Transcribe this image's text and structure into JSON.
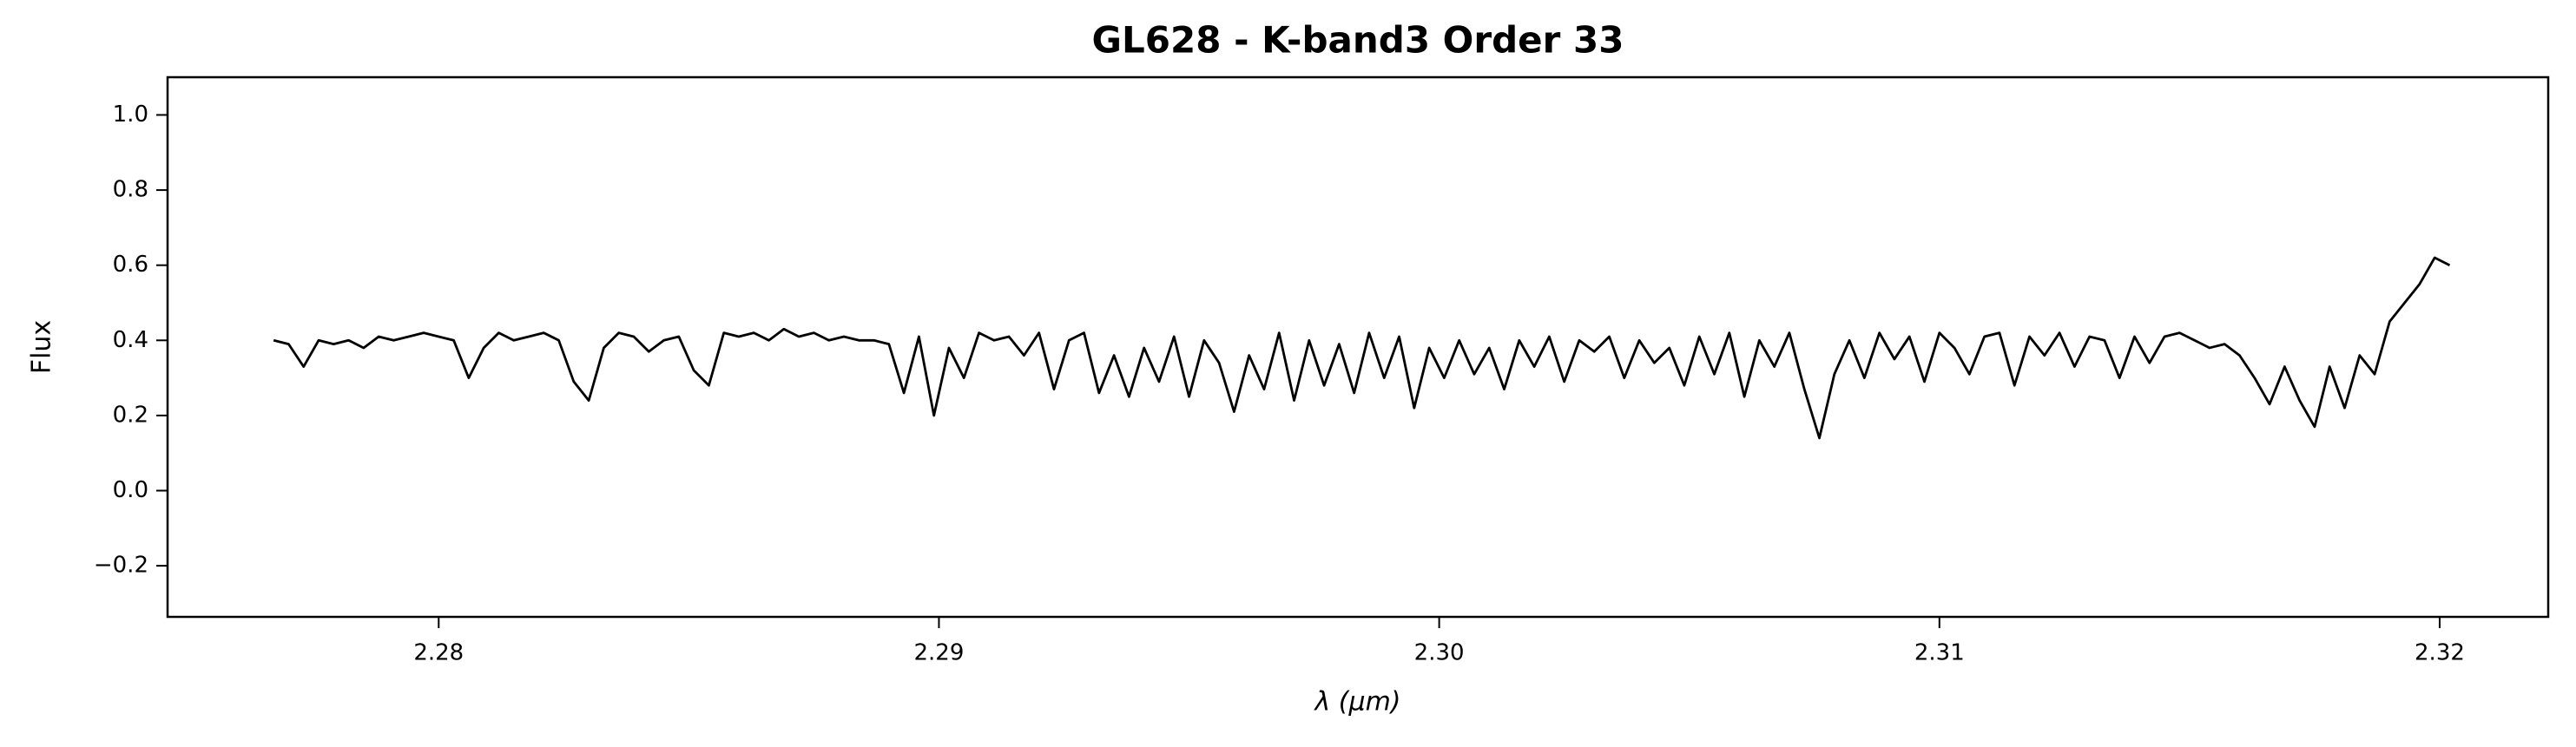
{
  "chart_data": {
    "type": "line",
    "title": "GL628 - K-band3 Order 33",
    "x_label": "λ (μm)",
    "y_label": "Flux",
    "x": [
      2.2767,
      2.277,
      2.2773,
      2.2776,
      2.2779,
      2.2782,
      2.2785,
      2.2788,
      2.2791,
      2.2794,
      2.2797,
      2.28,
      2.2803,
      2.2806,
      2.2809,
      2.2812,
      2.2815,
      2.2818,
      2.2821,
      2.2824,
      2.2827,
      2.283,
      2.2833,
      2.2836,
      2.2839,
      2.2842,
      2.2845,
      2.2848,
      2.2851,
      2.2854,
      2.2857,
      2.286,
      2.2863,
      2.2866,
      2.2869,
      2.2872,
      2.2875,
      2.2878,
      2.2881,
      2.2884,
      2.2887,
      2.289,
      2.2893,
      2.2896,
      2.2899,
      2.2902,
      2.2905,
      2.2908,
      2.2911,
      2.2914,
      2.2917,
      2.292,
      2.2923,
      2.2926,
      2.2929,
      2.2932,
      2.2935,
      2.2938,
      2.2941,
      2.2944,
      2.2947,
      2.295,
      2.2953,
      2.2956,
      2.2959,
      2.2962,
      2.2965,
      2.2968,
      2.2971,
      2.2974,
      2.2977,
      2.298,
      2.2983,
      2.2986,
      2.2989,
      2.2992,
      2.2995,
      2.2998,
      2.3001,
      2.3004,
      2.3007,
      2.301,
      2.3013,
      2.3016,
      2.3019,
      2.3022,
      2.3025,
      2.3028,
      2.3031,
      2.3034,
      2.3037,
      2.304,
      2.3043,
      2.3046,
      2.3049,
      2.3052,
      2.3055,
      2.3058,
      2.3061,
      2.3064,
      2.3067,
      2.307,
      2.3073,
      2.3076,
      2.3079,
      2.3082,
      2.3085,
      2.3088,
      2.3091,
      2.3094,
      2.3097,
      2.31,
      2.3103,
      2.3106,
      2.3109,
      2.3112,
      2.3115,
      2.3118,
      2.3121,
      2.3124,
      2.3127,
      2.313,
      2.3133,
      2.3136,
      2.3139,
      2.3142,
      2.3145,
      2.3148,
      2.3151,
      2.3154,
      2.3157,
      2.316,
      2.3163,
      2.3166,
      2.3169,
      2.3172,
      2.3175,
      2.3178,
      2.3181,
      2.3184,
      2.3187,
      2.319,
      2.3193,
      2.3196,
      2.3199,
      2.3202
    ],
    "values": [
      0.4,
      0.39,
      0.33,
      0.4,
      0.39,
      0.4,
      0.38,
      0.41,
      0.4,
      0.41,
      0.42,
      0.41,
      0.4,
      0.3,
      0.38,
      0.42,
      0.4,
      0.41,
      0.42,
      0.4,
      0.29,
      0.24,
      0.38,
      0.42,
      0.41,
      0.37,
      0.4,
      0.41,
      0.32,
      0.28,
      0.42,
      0.41,
      0.42,
      0.4,
      0.43,
      0.41,
      0.42,
      0.4,
      0.41,
      0.4,
      0.4,
      0.39,
      0.26,
      0.41,
      0.2,
      0.38,
      0.3,
      0.42,
      0.4,
      0.41,
      0.36,
      0.42,
      0.27,
      0.4,
      0.42,
      0.26,
      0.36,
      0.25,
      0.38,
      0.29,
      0.41,
      0.25,
      0.4,
      0.34,
      0.21,
      0.36,
      0.27,
      0.42,
      0.24,
      0.4,
      0.28,
      0.39,
      0.26,
      0.42,
      0.3,
      0.41,
      0.22,
      0.38,
      0.3,
      0.4,
      0.31,
      0.38,
      0.27,
      0.4,
      0.33,
      0.41,
      0.29,
      0.4,
      0.37,
      0.41,
      0.3,
      0.4,
      0.34,
      0.38,
      0.28,
      0.41,
      0.31,
      0.42,
      0.25,
      0.4,
      0.33,
      0.42,
      0.27,
      0.14,
      0.31,
      0.4,
      0.3,
      0.42,
      0.35,
      0.41,
      0.29,
      0.42,
      0.38,
      0.31,
      0.41,
      0.42,
      0.28,
      0.41,
      0.36,
      0.42,
      0.33,
      0.41,
      0.4,
      0.3,
      0.41,
      0.34,
      0.41,
      0.42,
      0.4,
      0.38,
      0.39,
      0.36,
      0.3,
      0.23,
      0.33,
      0.24,
      0.17,
      0.33,
      0.22,
      0.36,
      0.31,
      0.45,
      0.5,
      0.55,
      0.62,
      0.6
    ],
    "color": "#000000",
    "xlim": [
      2.27458,
      2.32217
    ],
    "ylim": [
      -0.336,
      1.1004
    ],
    "xticks": [
      2.28,
      2.29,
      {
        "value": 2.3,
        "label": "2.30"
      },
      2.31,
      2.32
    ],
    "yticks": [
      {
        "value": -0.2,
        "label": "−0.2"
      },
      {
        "value": 0.0,
        "label": "0.0"
      },
      0.2,
      0.4,
      0.6,
      0.8,
      {
        "value": 1.0,
        "label": "1.0"
      }
    ]
  }
}
